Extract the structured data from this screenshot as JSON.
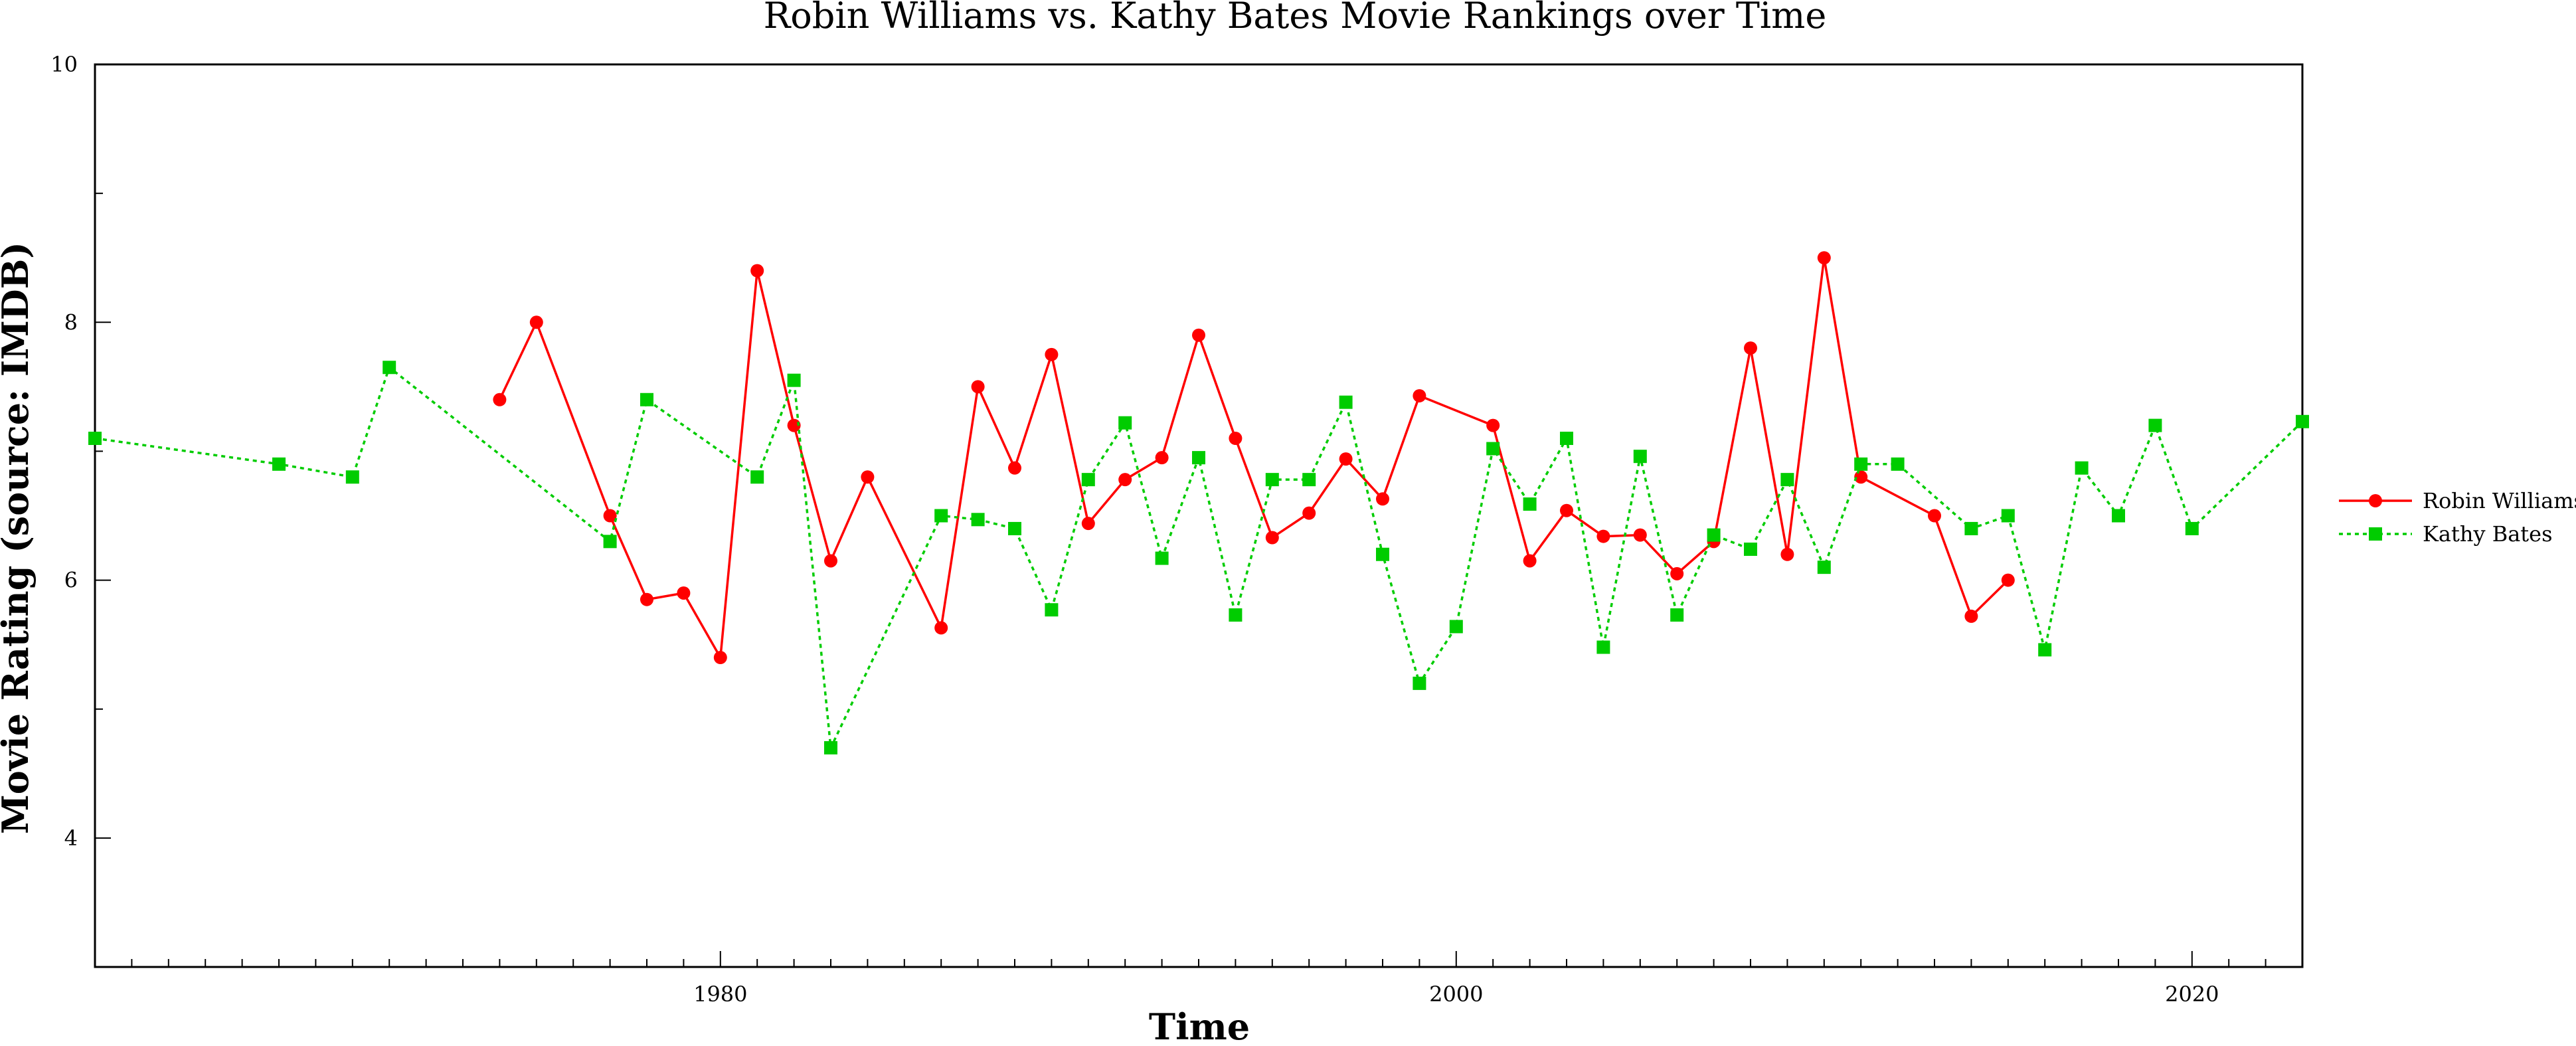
{
  "chart_data": {
    "type": "line",
    "title": "Robin Williams vs. Kathy Bates Movie Rankings over Time",
    "xlabel": "Time",
    "ylabel": "Movie Rating (source: IMDB)",
    "xlim": [
      1963,
      2023
    ],
    "ylim": [
      3,
      10
    ],
    "x_ticks": [
      1980,
      2000,
      2020
    ],
    "y_ticks": [
      4,
      6,
      8,
      10
    ],
    "x_minor_step": 1,
    "y_minor_step": 1,
    "grid": false,
    "legend": "right",
    "series": [
      {
        "name": "Robin Williams",
        "color": "#ff0000",
        "marker": "circle",
        "line_style": "solid",
        "points": [
          [
            1974,
            7.4
          ],
          [
            1975,
            8.0
          ],
          [
            1977,
            6.5
          ],
          [
            1978,
            5.85
          ],
          [
            1979,
            5.9
          ],
          [
            1980,
            5.4
          ],
          [
            1981,
            8.4
          ],
          [
            1982,
            7.2
          ],
          [
            1983,
            6.15
          ],
          [
            1984,
            6.8
          ],
          [
            1986,
            5.63
          ],
          [
            1987,
            7.5
          ],
          [
            1988,
            6.87
          ],
          [
            1989,
            7.75
          ],
          [
            1990,
            6.44
          ],
          [
            1991,
            6.78
          ],
          [
            1992,
            6.95
          ],
          [
            1993,
            7.9
          ],
          [
            1994,
            7.1
          ],
          [
            1995,
            6.33
          ],
          [
            1996,
            6.52
          ],
          [
            1997,
            6.94
          ],
          [
            1998,
            6.63
          ],
          [
            1999,
            7.43
          ],
          [
            2001,
            7.2
          ],
          [
            2002,
            6.15
          ],
          [
            2003,
            6.54
          ],
          [
            2004,
            6.34
          ],
          [
            2005,
            6.35
          ],
          [
            2006,
            6.05
          ],
          [
            2007,
            6.3
          ],
          [
            2008,
            7.8
          ],
          [
            2009,
            6.2
          ],
          [
            2010,
            8.5
          ],
          [
            2011,
            6.8
          ],
          [
            2013,
            6.5
          ],
          [
            2014,
            5.72
          ],
          [
            2015,
            6.0
          ]
        ]
      },
      {
        "name": "Kathy Bates",
        "color": "#00cc00",
        "marker": "square",
        "line_style": "dotted",
        "points": [
          [
            1963,
            7.1
          ],
          [
            1968,
            6.9
          ],
          [
            1970,
            6.8
          ],
          [
            1971,
            7.65
          ],
          [
            1977,
            6.3
          ],
          [
            1978,
            7.4
          ],
          [
            1981,
            6.8
          ],
          [
            1982,
            7.55
          ],
          [
            1983,
            4.7
          ],
          [
            1986,
            6.5
          ],
          [
            1987,
            6.47
          ],
          [
            1988,
            6.4
          ],
          [
            1989,
            5.77
          ],
          [
            1990,
            6.78
          ],
          [
            1991,
            7.22
          ],
          [
            1992,
            6.17
          ],
          [
            1993,
            6.95
          ],
          [
            1994,
            5.73
          ],
          [
            1995,
            6.78
          ],
          [
            1996,
            6.78
          ],
          [
            1997,
            7.38
          ],
          [
            1998,
            6.2
          ],
          [
            1999,
            5.2
          ],
          [
            2000,
            5.64
          ],
          [
            2001,
            7.02
          ],
          [
            2002,
            6.59
          ],
          [
            2003,
            7.1
          ],
          [
            2004,
            5.48
          ],
          [
            2005,
            6.96
          ],
          [
            2006,
            5.73
          ],
          [
            2007,
            6.35
          ],
          [
            2008,
            6.24
          ],
          [
            2009,
            6.78
          ],
          [
            2010,
            6.1
          ],
          [
            2011,
            6.9
          ],
          [
            2012,
            6.9
          ],
          [
            2014,
            6.4
          ],
          [
            2015,
            6.5
          ],
          [
            2016,
            5.46
          ],
          [
            2017,
            6.87
          ],
          [
            2018,
            6.5
          ],
          [
            2019,
            7.2
          ],
          [
            2020,
            6.4
          ],
          [
            2023,
            7.23
          ]
        ]
      }
    ]
  }
}
